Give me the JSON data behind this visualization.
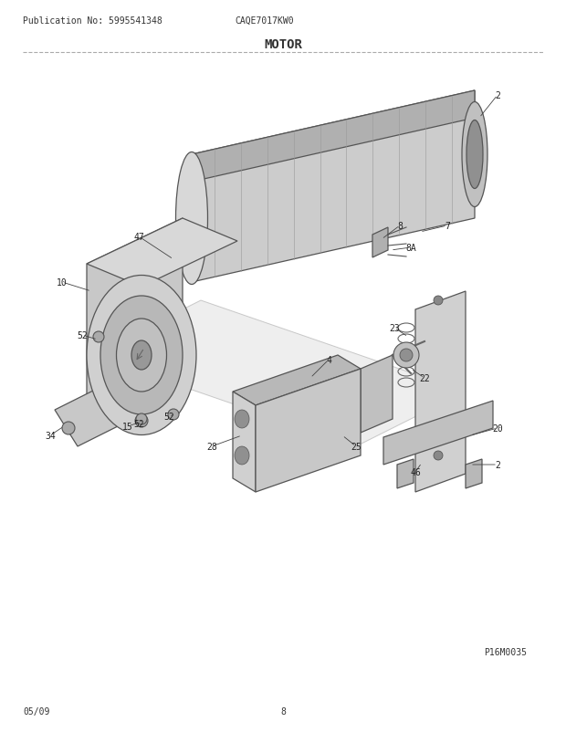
{
  "publication_no": "Publication No: 5995541348",
  "model": "CAQE7017KW0",
  "section": "MOTOR",
  "page_id": "P16M0035",
  "date": "05/09",
  "page_num": "8",
  "bg_color": "#ffffff",
  "text_color": "#333333",
  "header_fontsize": 7,
  "title_fontsize": 9,
  "label_fontsize": 7
}
